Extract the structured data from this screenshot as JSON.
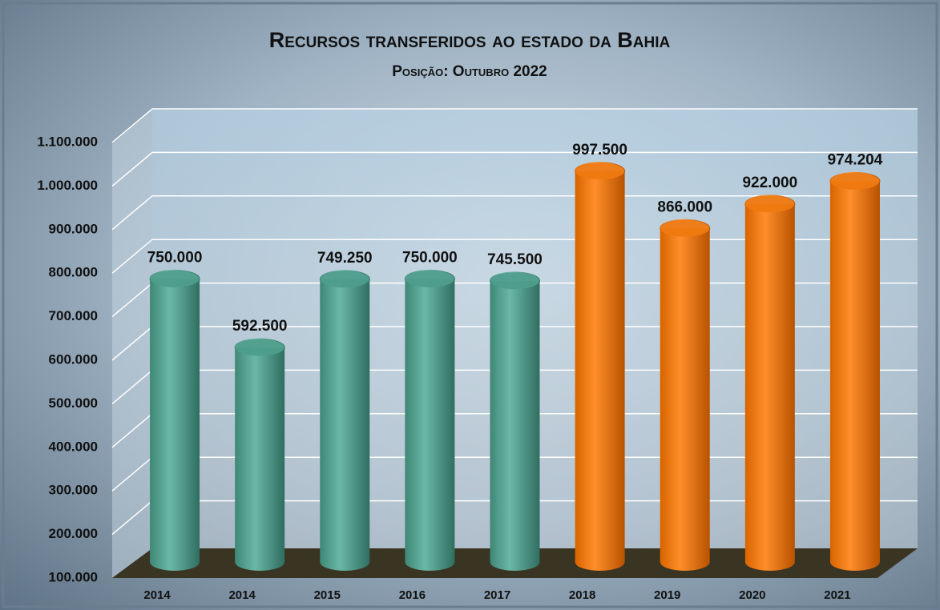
{
  "chart_data": {
    "type": "bar",
    "title": "Recursos transferidos ao estado da Bahia",
    "subtitle": "Posição:  Outubro 2022",
    "categories": [
      "2014",
      "2014",
      "2015",
      "2016",
      "2017",
      "2018",
      "2019",
      "2020",
      "2021"
    ],
    "values": [
      750000,
      592500,
      749250,
      750000,
      745500,
      997500,
      866000,
      922000,
      974204
    ],
    "value_labels": [
      "750.000",
      "592.500",
      "749.250",
      "750.000",
      "745.500",
      "997.500",
      "866.000",
      "922.000",
      "974.204"
    ],
    "colors": [
      "#4e9e8c",
      "#4e9e8c",
      "#4e9e8c",
      "#4e9e8c",
      "#4e9e8c",
      "#f07a10",
      "#f07a10",
      "#f07a10",
      "#f07a10"
    ],
    "ylim": [
      100000,
      1100000
    ],
    "yticks": [
      {
        "value": 100000,
        "label": "100.000"
      },
      {
        "value": 200000,
        "label": "200.000"
      },
      {
        "value": 300000,
        "label": "300.000"
      },
      {
        "value": 400000,
        "label": "400.000"
      },
      {
        "value": 500000,
        "label": "500.000"
      },
      {
        "value": 600000,
        "label": "600.000"
      },
      {
        "value": 700000,
        "label": "700.000"
      },
      {
        "value": 800000,
        "label": "800.000"
      },
      {
        "value": 900000,
        "label": "900.000"
      },
      {
        "value": 1000000,
        "label": "1.000.000"
      },
      {
        "value": 1100000,
        "label": "1.100.000"
      }
    ],
    "grid": true
  }
}
